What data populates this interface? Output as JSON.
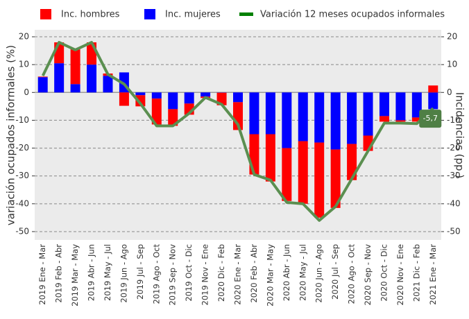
{
  "chart_data": {
    "type": "bar_line",
    "y_label": "variación ocupados informales (%)",
    "y2_label": "Incidencias (pp.)",
    "categories": [
      "2019 Ene - Mar",
      "2019 Feb - Abr",
      "2019 Mar - May",
      "2019 Abr - Jun",
      "2019 May - Jul",
      "2019 Jun - Ago",
      "2019 Jul - Sep",
      "2019 Ago - Oct",
      "2019 Sep - Nov",
      "2019 Oct - Dic",
      "2019 Nov - Ene",
      "2020 Dic - Feb",
      "2020 Ene - Mar",
      "2020 Feb - Abr",
      "2020 Mar - May",
      "2020 Abr - Jun",
      "2020 May - Jul",
      "2020 Jun - Ago",
      "2020 Jul - Sep",
      "2020 Ago - Oct",
      "2020 Sep - Nov",
      "2020 Oct - Dic",
      "2020 Nov - Ene",
      "2021 Dic - Feb",
      "2021 Ene - Mar"
    ],
    "series": [
      {
        "name": "Inc. hombres",
        "type": "bar",
        "color": "#ff0000",
        "values": [
          0.2,
          7.5,
          12.5,
          8,
          0.8,
          -4.8,
          -4,
          -9.3,
          -6,
          -4,
          -0.5,
          -4.5,
          -10,
          -14.5,
          -17,
          -19,
          -22.5,
          -27,
          -21,
          -13,
          -5.5,
          -2,
          -0.5,
          -1.5,
          2.5
        ]
      },
      {
        "name": "Inc. mujeres",
        "type": "bar",
        "color": "#0000ff",
        "values": [
          5.5,
          10.5,
          3,
          10,
          6,
          7.2,
          -1,
          -2.2,
          -6,
          -4,
          -1.5,
          -0.1,
          -3.5,
          -15,
          -15,
          -20,
          -17.5,
          -18,
          -20.5,
          -18.5,
          -15.5,
          -8.5,
          -10,
          -9,
          -6
        ]
      },
      {
        "name": "Variación 12 meses ocupados informales",
        "type": "line",
        "axis": "y2",
        "color": "#5b8f50",
        "legend_color": "#008000",
        "values": [
          6,
          18,
          15.3,
          18,
          6.5,
          3,
          -4,
          -12,
          -12,
          -7.5,
          -1.8,
          -4.3,
          -11.5,
          -29.5,
          -31.5,
          -39.5,
          -40,
          -46,
          -41,
          -31,
          -21,
          -11,
          -11,
          -11.2,
          -5.7
        ],
        "value_labels": [
          null,
          null,
          null,
          null,
          null,
          null,
          null,
          null,
          null,
          null,
          null,
          null,
          null,
          null,
          null,
          null,
          null,
          null,
          null,
          null,
          null,
          null,
          null,
          null,
          "-5,7"
        ]
      }
    ],
    "ylim": [
      -53,
      22.5
    ],
    "yticks": [
      -50,
      -40,
      -30,
      -20,
      -10,
      0,
      10,
      20
    ],
    "y2lim": [
      -53,
      22.5
    ],
    "y2ticks": [
      -50,
      -40,
      -30,
      -20,
      -10,
      0,
      10,
      20
    ],
    "grid": true
  }
}
